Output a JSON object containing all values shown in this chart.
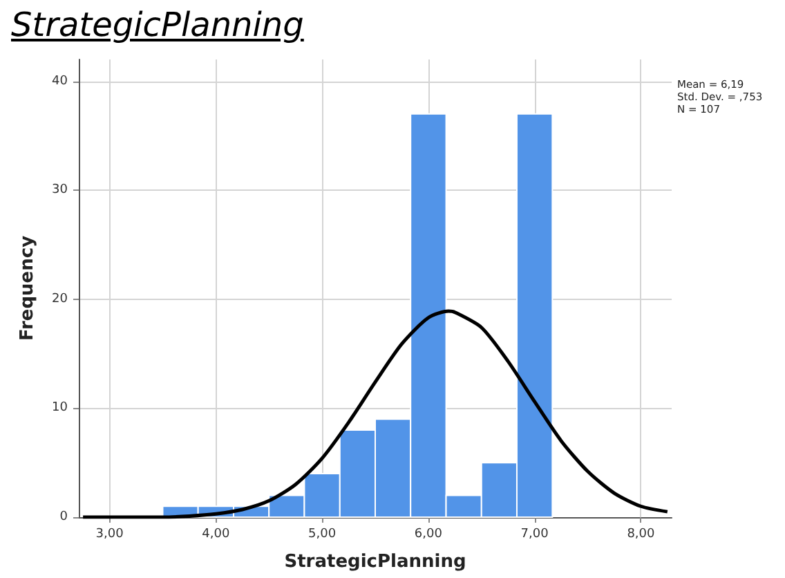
{
  "chart_data": {
    "type": "histogram",
    "title": "StrategicPlanning",
    "xlabel": "StrategicPlanning",
    "ylabel": "Frequency",
    "bins": [
      3.5,
      3.833,
      4.167,
      4.5,
      4.833,
      5.167,
      5.5,
      5.833,
      6.167,
      6.5,
      6.833,
      7.167
    ],
    "values": [
      1,
      1,
      1,
      2,
      4,
      8,
      9,
      37,
      2,
      5,
      37
    ],
    "color": "#5294e8",
    "series": [
      {
        "type": "line",
        "color": "#000000",
        "x": [
          2.75,
          3.0,
          3.25,
          3.5,
          3.75,
          4.0,
          4.25,
          4.5,
          4.75,
          5.0,
          5.25,
          5.5,
          5.75,
          6.0,
          6.19,
          6.25,
          6.5,
          6.75,
          7.0,
          7.25,
          7.5,
          7.75,
          8.0,
          8.25
        ],
        "values": [
          0,
          0,
          0,
          0,
          0.1,
          0.3,
          0.7,
          1.5,
          3,
          5.4,
          8.7,
          12.4,
          15.9,
          18.3,
          18.9,
          18.8,
          17.4,
          14.3,
          10.6,
          7,
          4.2,
          2.2,
          1,
          0.5
        ]
      }
    ],
    "xlim": [
      2.71,
      8.29
    ],
    "ylim": [
      0,
      42
    ],
    "xticks": [
      {
        "value": 3,
        "label": "3,00"
      },
      {
        "value": 4,
        "label": "4,00"
      },
      {
        "value": 5,
        "label": "5,00"
      },
      {
        "value": 6,
        "label": "6,00"
      },
      {
        "value": 7,
        "label": "7,00"
      },
      {
        "value": 8,
        "label": "8,00"
      }
    ],
    "yticks": [
      0,
      10,
      20,
      30,
      40
    ],
    "grid": true,
    "marker": "none",
    "annotations": [
      "Mean = 6,19",
      "Std. Dev. = ,753",
      "N = 107"
    ]
  }
}
